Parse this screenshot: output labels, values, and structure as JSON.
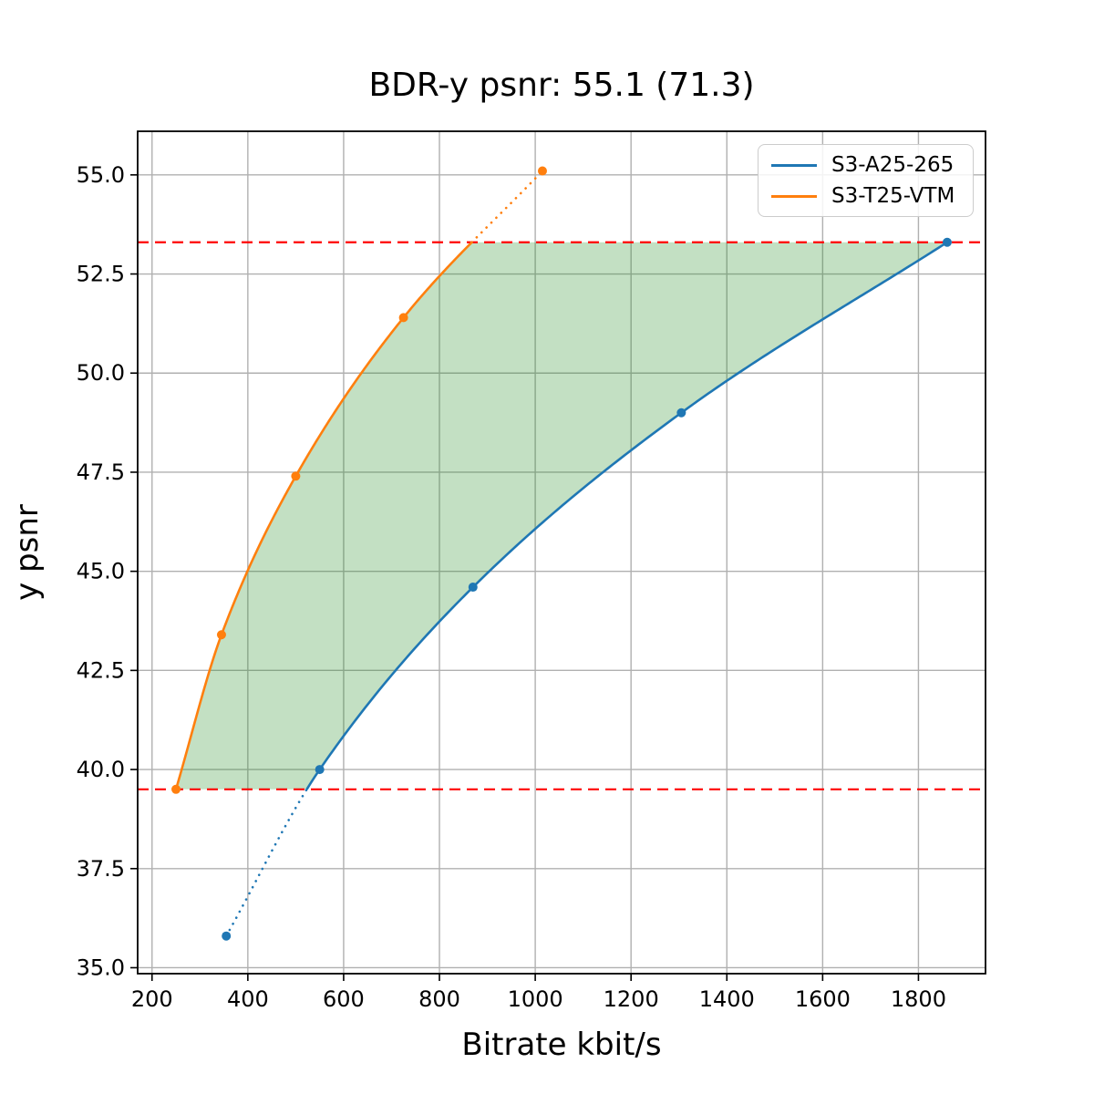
{
  "title": "BDR-y psnr: 55.1 (71.3)",
  "chart_data": {
    "type": "line",
    "title": "BDR-y psnr: 55.1 (71.3)",
    "xlabel": "Bitrate kbit/s",
    "ylabel": "y psnr",
    "xlim": [
      170,
      1940
    ],
    "ylim": [
      34.85,
      56.1
    ],
    "xticks": [
      200,
      400,
      600,
      800,
      1000,
      1200,
      1400,
      1600,
      1800
    ],
    "xtick_labels": [
      "200",
      "400",
      "600",
      "800",
      "1000",
      "1200",
      "1400",
      "1600",
      "1800"
    ],
    "yticks": [
      35.0,
      37.5,
      40.0,
      42.5,
      45.0,
      47.5,
      50.0,
      52.5,
      55.0
    ],
    "ytick_labels": [
      "35.0",
      "37.5",
      "40.0",
      "42.5",
      "45.0",
      "47.5",
      "50.0",
      "52.5",
      "55.0"
    ],
    "grid": true,
    "grid_color": "#b0b0b0",
    "spine_color": "#000000",
    "legend_position": "upper right",
    "series": [
      {
        "name": "S3-A25-265",
        "color": "#1f77b4",
        "points": [
          [
            355,
            35.8
          ],
          [
            550,
            40.0
          ],
          [
            870,
            44.6
          ],
          [
            1305,
            49.0
          ],
          [
            1860,
            53.3
          ]
        ]
      },
      {
        "name": "S3-T25-VTM",
        "color": "#ff7f0e",
        "points": [
          [
            250,
            39.5
          ],
          [
            345,
            43.4
          ],
          [
            500,
            47.4
          ],
          [
            725,
            51.4
          ],
          [
            1015,
            55.1
          ]
        ]
      }
    ],
    "hlines": {
      "values": [
        53.3,
        39.5
      ],
      "color": "#ff0000",
      "style": "dashed"
    },
    "shaded_region": {
      "fill": "rgba(34,139,34,0.27)",
      "y_min": 39.5,
      "y_max": 53.3
    },
    "curve_style_note": "solid inside y range 39.5-53.3, dotted outside"
  }
}
